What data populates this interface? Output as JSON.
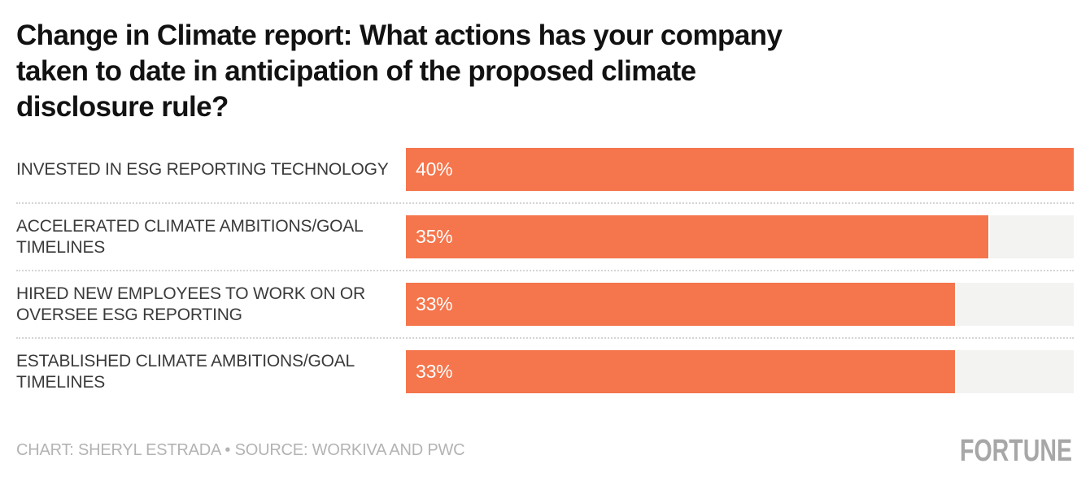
{
  "title": "Change in Climate report: What actions has your company taken to date in anticipation of the proposed climate disclosure rule?",
  "title_lines": [
    "Change in Climate report: What actions has your company",
    "taken to date in anticipation of the proposed climate",
    "disclosure rule?"
  ],
  "chart_data": {
    "type": "bar",
    "orientation": "horizontal",
    "title": "Change in Climate report: What actions has your company taken to date in anticipation of the proposed climate disclosure rule?",
    "categories": [
      "INVESTED IN ESG REPORTING TECHNOLOGY",
      "ACCELERATED CLIMATE AMBITIONS/GOAL TIMELINES",
      "HIRED NEW EMPLOYEES TO WORK ON OR OVERSEE ESG REPORTING",
      "ESTABLISHED CLIMATE AMBITIONS/GOAL TIMELINES"
    ],
    "values": [
      40,
      35,
      33,
      33
    ],
    "value_labels": [
      "40%",
      "35%",
      "33%",
      "33%"
    ],
    "xlabel": "",
    "ylabel": "",
    "xlim": [
      0,
      40
    ],
    "grid": false,
    "legend": false
  },
  "rows": [
    {
      "label_line1": "INVESTED IN ESG REPORTING TECHNOLOGY",
      "label_line2": "",
      "value_label": "40%",
      "pct": 40
    },
    {
      "label_line1": "ACCELERATED CLIMATE AMBITIONS/GOAL",
      "label_line2": "TIMELINES",
      "value_label": "35%",
      "pct": 35
    },
    {
      "label_line1": "HIRED NEW EMPLOYEES TO WORK ON OR",
      "label_line2": "OVERSEE ESG REPORTING",
      "value_label": "33%",
      "pct": 33
    },
    {
      "label_line1": "ESTABLISHED CLIMATE AMBITIONS/GOAL",
      "label_line2": "TIMELINES",
      "value_label": "33%",
      "pct": 33
    }
  ],
  "footer": {
    "credit": "CHART: SHERYL ESTRADA • SOURCE: WORKIVA AND PWC",
    "brand": "FORTUNE"
  },
  "colors": {
    "bar": "#f5754c",
    "track": "#f3f3f1",
    "title": "#121212",
    "label": "#3a3a3a",
    "value_text": "#ffffff",
    "separator": "#d5d5d5",
    "footer_text": "#b3b3b3",
    "brand": "#a7a7a7",
    "background": "#ffffff"
  }
}
